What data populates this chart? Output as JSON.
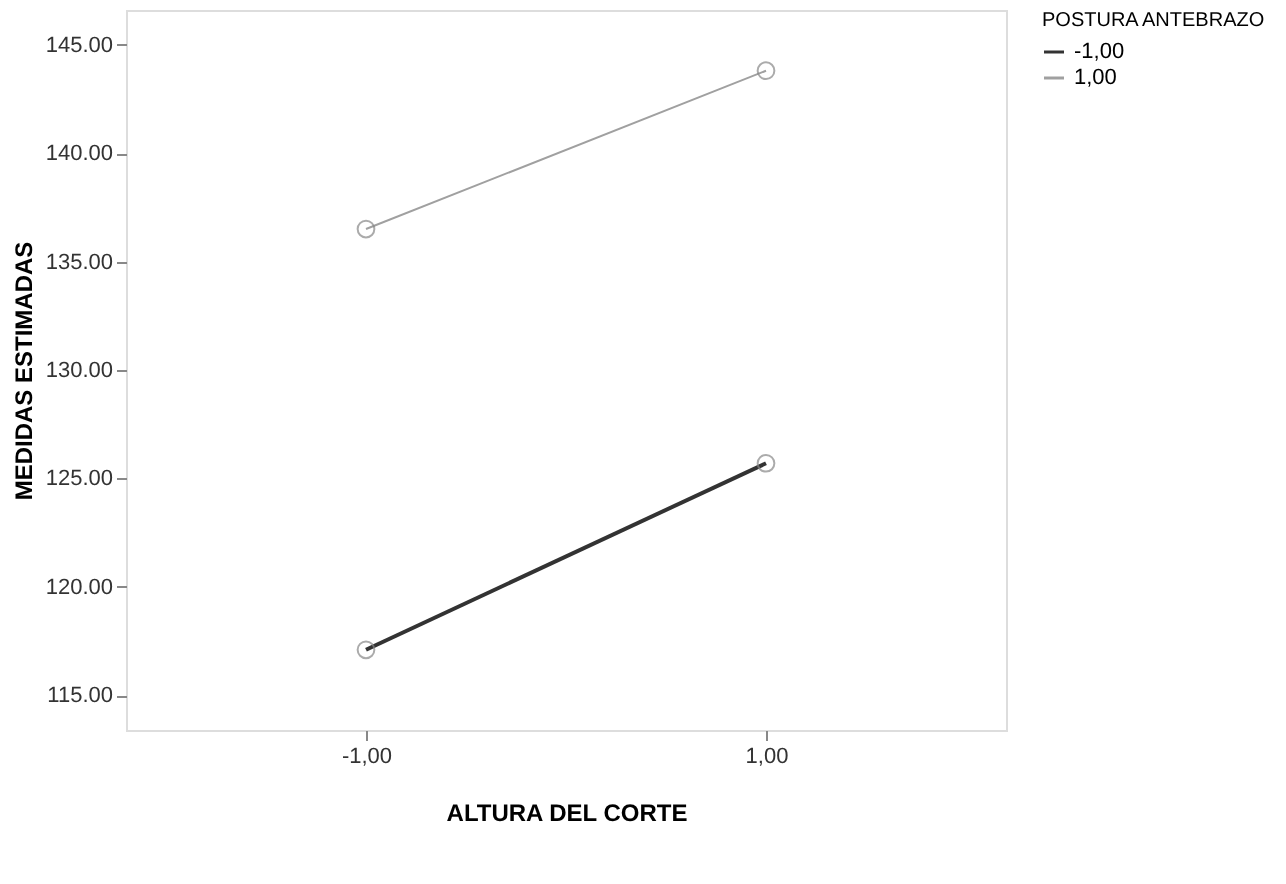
{
  "chart_data": {
    "type": "line",
    "xlabel": "ALTURA DEL CORTE",
    "ylabel": "MEDIDAS ESTIMADAS",
    "legend_title": "POSTURA ANTEBRAZO",
    "categories": [
      "-1,00",
      "1,00"
    ],
    "series": [
      {
        "name": "-1,00",
        "color": "#333333",
        "values": [
          117.1,
          125.7
        ]
      },
      {
        "name": "1,00",
        "color": "#a0a0a0",
        "values": [
          136.5,
          143.8
        ]
      }
    ],
    "ylim": [
      113.4,
      146.6
    ],
    "yticks": [
      {
        "value": 115,
        "label": "115.00"
      },
      {
        "value": 120,
        "label": "120.00"
      },
      {
        "value": 125,
        "label": "125.00"
      },
      {
        "value": 130,
        "label": "130.00"
      },
      {
        "value": 135,
        "label": "135.00"
      },
      {
        "value": 140,
        "label": "140.00"
      },
      {
        "value": 145,
        "label": "145.00"
      }
    ],
    "marker": "circle",
    "grid": false,
    "legend": "top right"
  }
}
